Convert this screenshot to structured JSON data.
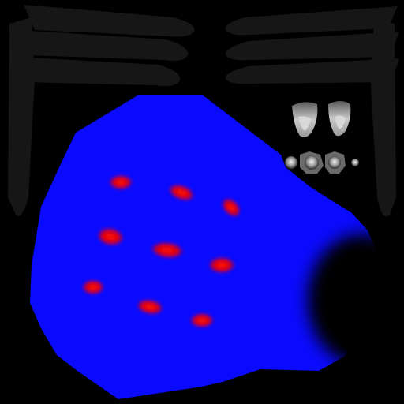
{
  "canvas": {
    "background": "#000000"
  },
  "texture": {
    "kind": "uv-texture-atlas",
    "colors": {
      "body_fill": "#0a0aff",
      "spot_fill": "#ff0000",
      "spot_glow": "#7a0060",
      "leg_fill": "#161616",
      "shadow_fill": "#000000",
      "eye_highlight": "#e6e6e6",
      "eye_mid": "#8a8a8a"
    },
    "parts": [
      "leg-strip-left",
      "leg-strip-right",
      "body-panel",
      "spot-cluster",
      "mouth-shadow",
      "eye-cluster"
    ]
  }
}
